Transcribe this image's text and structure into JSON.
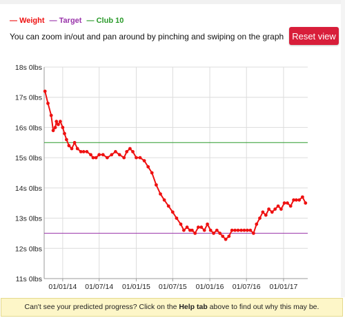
{
  "legend": {
    "weight_label": "Weight",
    "target_label": "Target",
    "club_label": "Club 10",
    "weight_color": "#ee1111",
    "target_color": "#9933aa",
    "club_color": "#2a9a2a"
  },
  "hint_text": "You can zoom in/out and pan around by pinching and swiping on the graph",
  "reset_button_label": "Reset view",
  "notice": {
    "prefix": "Can't see your predicted progress? Click on the ",
    "bold": "Help tab",
    "suffix": " above to find out why this may be."
  },
  "chart_data": {
    "type": "line",
    "y_unit": "stone",
    "ylim": [
      11,
      18
    ],
    "y_ticks": [
      {
        "value": 18,
        "label": "18s 0lbs"
      },
      {
        "value": 17,
        "label": "17s 0lbs"
      },
      {
        "value": 16,
        "label": "16s 0lbs"
      },
      {
        "value": 15,
        "label": "15s 0lbs"
      },
      {
        "value": 14,
        "label": "14s 0lbs"
      },
      {
        "value": 13,
        "label": "13s 0lbs"
      },
      {
        "value": 12,
        "label": "12s 0lbs"
      },
      {
        "value": 11,
        "label": "11s 0lbs"
      }
    ],
    "xlim": [
      "2013-10-01",
      "2017-05-01"
    ],
    "x_ticks": [
      {
        "value": "2014-01-01",
        "label": "01/01/14"
      },
      {
        "value": "2014-07-01",
        "label": "01/07/14"
      },
      {
        "value": "2015-01-01",
        "label": "01/01/15"
      },
      {
        "value": "2015-07-01",
        "label": "01/07/15"
      },
      {
        "value": "2016-01-01",
        "label": "01/01/16"
      },
      {
        "value": "2016-07-01",
        "label": "01/07/16"
      },
      {
        "value": "2017-01-01",
        "label": "01/01/17"
      }
    ],
    "target": 12.5,
    "club10": 15.5,
    "grid": true,
    "legend_position": "top-left",
    "series": [
      {
        "name": "Weight",
        "color": "#ee1111",
        "x": [
          "2013-10-05",
          "2013-10-20",
          "2013-11-05",
          "2013-11-15",
          "2013-11-25",
          "2013-12-01",
          "2013-12-10",
          "2013-12-20",
          "2014-01-01",
          "2014-01-10",
          "2014-01-20",
          "2014-02-01",
          "2014-02-15",
          "2014-03-01",
          "2014-03-15",
          "2014-04-01",
          "2014-04-15",
          "2014-05-01",
          "2014-05-20",
          "2014-06-01",
          "2014-06-15",
          "2014-07-01",
          "2014-07-20",
          "2014-08-10",
          "2014-09-01",
          "2014-09-20",
          "2014-10-10",
          "2014-11-01",
          "2014-11-15",
          "2014-12-01",
          "2014-12-15",
          "2015-01-01",
          "2015-01-20",
          "2015-02-10",
          "2015-03-01",
          "2015-03-20",
          "2015-04-10",
          "2015-05-01",
          "2015-05-20",
          "2015-06-10",
          "2015-07-01",
          "2015-07-20",
          "2015-08-10",
          "2015-08-25",
          "2015-09-10",
          "2015-09-25",
          "2015-10-05",
          "2015-10-20",
          "2015-11-05",
          "2015-11-20",
          "2015-12-05",
          "2015-12-20",
          "2016-01-05",
          "2016-01-20",
          "2016-02-05",
          "2016-02-20",
          "2016-03-05",
          "2016-03-20",
          "2016-04-05",
          "2016-04-20",
          "2016-05-05",
          "2016-05-20",
          "2016-06-05",
          "2016-06-20",
          "2016-07-05",
          "2016-07-20",
          "2016-08-05",
          "2016-08-20",
          "2016-09-05",
          "2016-09-20",
          "2016-10-05",
          "2016-10-20",
          "2016-11-05",
          "2016-11-20",
          "2016-12-05",
          "2016-12-20",
          "2017-01-05",
          "2017-01-20",
          "2017-02-05",
          "2017-02-20",
          "2017-03-05",
          "2017-03-20",
          "2017-04-05",
          "2017-04-20"
        ],
        "values": [
          17.2,
          16.8,
          16.4,
          15.9,
          16.0,
          16.2,
          16.1,
          16.2,
          16.0,
          15.8,
          15.6,
          15.4,
          15.3,
          15.5,
          15.3,
          15.2,
          15.2,
          15.2,
          15.1,
          15.0,
          15.0,
          15.1,
          15.1,
          15.0,
          15.1,
          15.2,
          15.1,
          15.0,
          15.2,
          15.3,
          15.2,
          15.0,
          15.0,
          14.9,
          14.7,
          14.5,
          14.1,
          13.8,
          13.6,
          13.4,
          13.2,
          13.0,
          12.8,
          12.6,
          12.7,
          12.6,
          12.6,
          12.5,
          12.7,
          12.7,
          12.6,
          12.8,
          12.6,
          12.5,
          12.6,
          12.5,
          12.4,
          12.3,
          12.4,
          12.6,
          12.6,
          12.6,
          12.6,
          12.6,
          12.6,
          12.6,
          12.5,
          12.8,
          13.0,
          13.2,
          13.1,
          13.3,
          13.2,
          13.3,
          13.4,
          13.3,
          13.5,
          13.5,
          13.4,
          13.6,
          13.6,
          13.6,
          13.7,
          13.5
        ]
      }
    ]
  }
}
